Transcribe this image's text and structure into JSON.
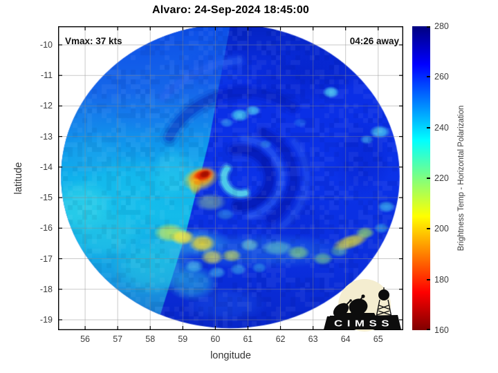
{
  "title": "Alvaro: 24-Sep-2024 18:45:00",
  "annotations": {
    "vmax": "Vmax: 37 kts",
    "time_away": "04:26 away"
  },
  "axes": {
    "xlabel": "longitude",
    "ylabel": "latitude"
  },
  "colorbar": {
    "label": "Brightness Temp - Horizontal Polarization",
    "min": 160,
    "max": 280,
    "tick_labels": [
      280,
      260,
      240,
      220,
      200,
      180,
      160
    ],
    "stops_top_to_bottom": [
      [
        0,
        "#00007f"
      ],
      [
        0.125,
        "#0000ff"
      ],
      [
        0.375,
        "#00ffff"
      ],
      [
        0.625,
        "#ffff00"
      ],
      [
        0.875,
        "#ff0000"
      ],
      [
        1,
        "#7f0000"
      ]
    ]
  },
  "logo": {
    "text": "CIMSS",
    "circle_color": "#f4edd0",
    "ink": "#0d0d0d"
  },
  "chart_data": {
    "type": "heatmap",
    "title": "Alvaro: 24-Sep-2024 18:45:00",
    "storm": {
      "name": "Alvaro",
      "datetime": "24-Sep-2024 18:45:00",
      "vmax_kts": 37,
      "time_away": "04:26 away"
    },
    "xlabel": "longitude",
    "ylabel": "latitude",
    "xlim": [
      55.17,
      65.77
    ],
    "ylim_top": -9.39,
    "ylim_bottom": -19.34,
    "xticks": [
      56,
      57,
      58,
      59,
      60,
      61,
      62,
      63,
      64,
      65
    ],
    "yticks": [
      -10,
      -11,
      -12,
      -13,
      -14,
      -15,
      -16,
      -17,
      -18,
      -19
    ],
    "value_label": "Brightness Temp - Horizontal Polarization",
    "value_range": [
      160,
      280
    ],
    "colormap": "reversed-jet",
    "swath": {
      "center": [
        60.46,
        -14.3
      ],
      "rx_deg": 5.2,
      "ry_deg": 4.98
    },
    "seam_polyline": [
      [
        60.45,
        -9.39
      ],
      [
        59.8,
        -13.17
      ],
      [
        59.08,
        -16.22
      ],
      [
        58.16,
        -19.34
      ]
    ],
    "right_gradient": [
      [
        0,
        "#0524c4"
      ],
      [
        0.18,
        "#0a2ee6"
      ],
      [
        0.5,
        "#0b32e8"
      ],
      [
        0.8,
        "#0a2edd"
      ],
      [
        1,
        "#0826c8"
      ]
    ],
    "left_gradient": [
      [
        0,
        "#0d4fe8"
      ],
      [
        0.22,
        "#1668ea"
      ],
      [
        0.36,
        "#1190ec"
      ],
      [
        0.5,
        "#0fb2ec"
      ],
      [
        0.62,
        "#14bcea"
      ],
      [
        0.74,
        "#12aee8"
      ],
      [
        0.86,
        "#1894e0"
      ],
      [
        1,
        "#1b70d0"
      ]
    ],
    "patches": [
      {
        "p": [
          57.2,
          -14.8
        ],
        "r": [
          1.7,
          1.2
        ],
        "c": "#18c2ee",
        "a": 0.55
      },
      {
        "p": [
          55.9,
          -15.3
        ],
        "r": [
          1.0,
          0.9
        ],
        "c": "#38d8e8",
        "a": 0.6
      },
      {
        "p": [
          56.6,
          -16.2
        ],
        "r": [
          1.2,
          0.8
        ],
        "c": "#2ccce6",
        "a": 0.5
      },
      {
        "p": [
          58.1,
          -17.3
        ],
        "r": [
          1.3,
          0.9
        ],
        "c": "#2ad0e2",
        "a": 0.5
      },
      {
        "p": [
          58.7,
          -14.2
        ],
        "r": [
          0.7,
          0.9
        ],
        "c": "#34d4ec",
        "a": 0.45
      },
      {
        "p": [
          56.2,
          -13.6
        ],
        "r": [
          0.9,
          0.7
        ],
        "c": "#1fa8ee",
        "a": 0.45
      },
      {
        "p": [
          55.7,
          -12.4
        ],
        "r": [
          0.9,
          0.7
        ],
        "c": "#1b84ec",
        "a": 0.4
      },
      {
        "p": [
          57.9,
          -12.2
        ],
        "r": [
          1.1,
          0.7
        ],
        "c": "#1878ee",
        "a": 0.4
      },
      {
        "p": [
          59.3,
          -17.8
        ],
        "r": [
          0.8,
          0.6
        ],
        "c": "#2fd2e0",
        "a": 0.5
      },
      {
        "p": [
          62.6,
          -11.2
        ],
        "r": [
          1.6,
          0.8
        ],
        "c": "#041cb8",
        "a": 0.35
      },
      {
        "p": [
          64.5,
          -13.7
        ],
        "r": [
          0.9,
          1.3
        ],
        "c": "#0519bc",
        "a": 0.3
      },
      {
        "p": [
          63.6,
          -10.7
        ],
        "r": [
          1.8,
          0.8
        ],
        "c": "#0420c0",
        "a": 0.3
      },
      {
        "p": [
          62.3,
          -15.7
        ],
        "r": [
          1.3,
          0.8
        ],
        "c": "#0721c8",
        "a": 0.25
      },
      {
        "p": [
          60.3,
          -18.5
        ],
        "r": [
          1.3,
          0.6
        ],
        "c": "#1e5cec",
        "a": 0.4
      },
      {
        "p": [
          60.0,
          -10.8
        ],
        "r": [
          1.3,
          0.7
        ],
        "c": "#0f46ea",
        "a": 0.35
      }
    ],
    "arcs": [
      {
        "c": [
          60.75,
          -14.35
        ],
        "r": 0.92,
        "a0": -100,
        "a1": 95,
        "w": 0.3,
        "col": "#0414a8",
        "al": 0.45
      },
      {
        "c": [
          60.75,
          -14.35
        ],
        "r": 1.65,
        "a0": -65,
        "a1": 55,
        "w": 0.28,
        "col": "#0517b0",
        "al": 0.35
      },
      {
        "c": [
          60.9,
          -14.1
        ],
        "r": 2.55,
        "a0": -155,
        "a1": -55,
        "w": 0.32,
        "col": "#0519b4",
        "al": 0.3
      },
      {
        "c": [
          60.75,
          -14.35
        ],
        "r": 1.28,
        "a0": -85,
        "a1": 75,
        "w": 0.2,
        "col": "#2f62f4",
        "al": 0.38
      },
      {
        "c": [
          60.75,
          -14.35
        ],
        "r": 2.05,
        "a0": -35,
        "a1": 50,
        "w": 0.2,
        "col": "#2a58ee",
        "al": 0.3
      },
      {
        "c": [
          60.78,
          -14.35
        ],
        "r": 0.52,
        "a0": 75,
        "a1": 215,
        "w": 0.2,
        "col": "#55e0ea",
        "al": 0.7
      },
      {
        "c": [
          61.0,
          -13.9
        ],
        "r": 3.4,
        "a0": -140,
        "a1": -95,
        "w": 0.25,
        "col": "#2f66f2",
        "al": 0.3
      }
    ],
    "spots": [
      {
        "p": [
          61.3,
          -16.75
        ],
        "r": [
          3.1,
          0.6
        ],
        "c": "#2f96e8",
        "a": 0.35
      },
      {
        "p": [
          59.2,
          -16.45
        ],
        "r": [
          1.3,
          0.5
        ],
        "c": "#38c2e2",
        "a": 0.5
      },
      {
        "p": [
          58.6,
          -16.15
        ],
        "r": [
          0.5,
          0.32
        ],
        "c": "#bfe55a",
        "a": 0.85
      },
      {
        "p": [
          59.0,
          -16.3
        ],
        "r": [
          0.38,
          0.26
        ],
        "c": "#f2e53c",
        "a": 0.95
      },
      {
        "p": [
          59.6,
          -16.5
        ],
        "r": [
          0.42,
          0.3
        ],
        "c": "#ecd832",
        "a": 0.9
      },
      {
        "p": [
          59.9,
          -16.95
        ],
        "r": [
          0.36,
          0.26
        ],
        "c": "#e0e04a",
        "a": 0.75
      },
      {
        "p": [
          60.5,
          -16.9
        ],
        "r": [
          0.32,
          0.22
        ],
        "c": "#cfe24e",
        "a": 0.7
      },
      {
        "p": [
          61.05,
          -16.55
        ],
        "r": [
          0.3,
          0.22
        ],
        "c": "#7fdcc8",
        "a": 0.65
      },
      {
        "p": [
          61.9,
          -16.65
        ],
        "r": [
          0.5,
          0.26
        ],
        "c": "#6ad4c0",
        "a": 0.6
      },
      {
        "p": [
          62.55,
          -16.8
        ],
        "r": [
          0.36,
          0.24
        ],
        "c": "#8adc7a",
        "a": 0.7
      },
      {
        "p": [
          63.3,
          -17.0
        ],
        "r": [
          0.32,
          0.22
        ],
        "c": "#7cd488",
        "a": 0.65
      },
      {
        "p": [
          63.8,
          -16.75
        ],
        "r": [
          0.3,
          0.2
        ],
        "c": "#6fcf9a",
        "a": 0.55
      },
      {
        "p": [
          64.15,
          -16.45
        ],
        "r": [
          0.6,
          0.24
        ],
        "c": "#e2dd3a",
        "a": 0.85,
        "rot": -18
      },
      {
        "p": [
          64.6,
          -16.15
        ],
        "r": [
          0.3,
          0.2
        ],
        "c": "#9ade62",
        "a": 0.75
      },
      {
        "p": [
          59.35,
          -17.25
        ],
        "r": [
          0.3,
          0.22
        ],
        "c": "#49c4e8",
        "a": 0.7
      },
      {
        "p": [
          60.05,
          -17.45
        ],
        "r": [
          0.28,
          0.2
        ],
        "c": "#45c0e8",
        "a": 0.6
      },
      {
        "p": [
          60.7,
          -17.35
        ],
        "r": [
          0.26,
          0.2
        ],
        "c": "#45c0e8",
        "a": 0.55
      },
      {
        "p": [
          61.35,
          -17.3
        ],
        "r": [
          0.24,
          0.18
        ],
        "c": "#3fb8e8",
        "a": 0.5
      },
      {
        "p": [
          59.85,
          -15.15
        ],
        "r": [
          0.5,
          0.3
        ],
        "c": "#a8dc7c",
        "a": 0.5
      },
      {
        "p": [
          60.3,
          -15.55
        ],
        "r": [
          0.3,
          0.2
        ],
        "c": "#49c0e8",
        "a": 0.45
      },
      {
        "p": [
          60.75,
          -12.3
        ],
        "r": [
          0.3,
          0.22
        ],
        "c": "#49d4f2",
        "a": 0.85
      },
      {
        "p": [
          61.15,
          -12.15
        ],
        "r": [
          0.24,
          0.18
        ],
        "c": "#55dcf4",
        "a": 0.75
      },
      {
        "p": [
          60.35,
          -12.55
        ],
        "r": [
          0.22,
          0.16
        ],
        "c": "#3fb8f0",
        "a": 0.55
      },
      {
        "p": [
          63.55,
          -11.55
        ],
        "r": [
          0.26,
          0.2
        ],
        "c": "#55e0f4",
        "a": 0.8
      },
      {
        "p": [
          65.05,
          -12.85
        ],
        "r": [
          0.32,
          0.22
        ],
        "c": "#4fd8f2",
        "a": 0.8
      },
      {
        "p": [
          64.65,
          -13.1
        ],
        "r": [
          0.22,
          0.16
        ],
        "c": "#45c8ee",
        "a": 0.55
      },
      {
        "p": [
          65.25,
          -15.3
        ],
        "r": [
          0.28,
          0.2
        ],
        "c": "#49d0f0",
        "a": 0.65
      },
      {
        "p": [
          65.1,
          -16.0
        ],
        "r": [
          0.24,
          0.18
        ],
        "c": "#42c4ec",
        "a": 0.55
      },
      {
        "p": [
          61.55,
          -13.25
        ],
        "r": [
          0.2,
          0.15
        ],
        "c": "#3fb0f0",
        "a": 0.45
      },
      {
        "p": [
          62.6,
          -12.55
        ],
        "r": [
          0.22,
          0.16
        ],
        "c": "#2f8cf0",
        "a": 0.45
      },
      {
        "p": [
          59.55,
          -14.38
        ],
        "r": [
          0.58,
          0.4
        ],
        "c": "#ffd81e",
        "a": 0.85,
        "rot": -15
      },
      {
        "p": [
          59.58,
          -14.3
        ],
        "r": [
          0.44,
          0.28
        ],
        "c": "#ff7d04",
        "a": 0.95,
        "rot": -15
      },
      {
        "p": [
          59.63,
          -14.26
        ],
        "r": [
          0.32,
          0.19
        ],
        "c": "#e41c00",
        "a": 1,
        "rot": -15
      },
      {
        "p": [
          59.68,
          -14.23
        ],
        "r": [
          0.19,
          0.12
        ],
        "c": "#a00e00",
        "a": 1,
        "rot": -15
      },
      {
        "p": [
          59.38,
          -14.62
        ],
        "r": [
          0.2,
          0.3
        ],
        "c": "#f0c41e",
        "a": 0.7
      },
      {
        "p": [
          59.45,
          -14.5
        ],
        "r": [
          0.13,
          0.11
        ],
        "c": "#ff9a10",
        "a": 0.8
      }
    ],
    "hotspot_peak": {
      "lon": 59.65,
      "lat": -14.25,
      "tb_estimate_K": 168
    }
  }
}
